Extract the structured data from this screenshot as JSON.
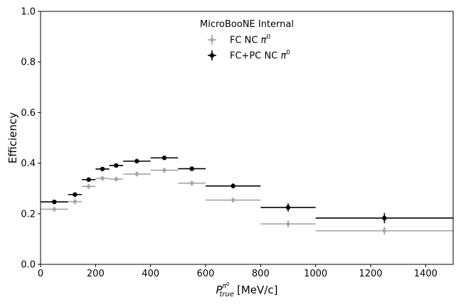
{
  "chart_data": {
    "type": "scatter",
    "title": "MicroBooNE Internal",
    "xlabel": {
      "symbol": "P",
      "superscript": "π",
      "superscript2": "0",
      "subscript": "true",
      "unit": "[MeV/c]"
    },
    "ylabel": "Efficiency",
    "xlim": [
      0,
      1500
    ],
    "ylim": [
      0,
      1.0
    ],
    "xticks": [
      "0",
      "200",
      "400",
      "600",
      "800",
      "1000",
      "1200",
      "1400"
    ],
    "xtick_values": [
      0,
      200,
      400,
      600,
      800,
      1000,
      1200,
      1400
    ],
    "yticks": [
      "0.0",
      "0.2",
      "0.4",
      "0.6",
      "0.8",
      "1.0"
    ],
    "ytick_values": [
      0.0,
      0.2,
      0.4,
      0.6,
      0.8,
      1.0
    ],
    "bin_edges": [
      0,
      100,
      150,
      200,
      250,
      300,
      400,
      500,
      600,
      800,
      1000,
      1500
    ],
    "bin_centers": [
      50,
      125,
      175,
      225,
      275,
      350,
      450,
      550,
      700,
      900,
      1250
    ],
    "legend_position": "upper-center",
    "series": [
      {
        "name": "FC NC",
        "name_symbol": "π",
        "name_sup": "0",
        "color": "#a6a6a6",
        "marker": "diamond",
        "values": [
          0.218,
          0.248,
          0.308,
          0.34,
          0.337,
          0.357,
          0.372,
          0.321,
          0.254,
          0.16,
          0.133
        ],
        "errors": [
          0.006,
          0.006,
          0.007,
          0.008,
          0.008,
          0.007,
          0.007,
          0.008,
          0.009,
          0.014,
          0.016
        ]
      },
      {
        "name": "FC+PC NC",
        "name_symbol": "π",
        "name_sup": "0",
        "color": "#000000",
        "marker": "circle",
        "values": [
          0.247,
          0.276,
          0.335,
          0.377,
          0.391,
          0.408,
          0.421,
          0.378,
          0.31,
          0.225,
          0.183
        ],
        "errors": [
          0.006,
          0.006,
          0.007,
          0.008,
          0.008,
          0.007,
          0.007,
          0.009,
          0.01,
          0.016,
          0.02
        ]
      }
    ]
  }
}
